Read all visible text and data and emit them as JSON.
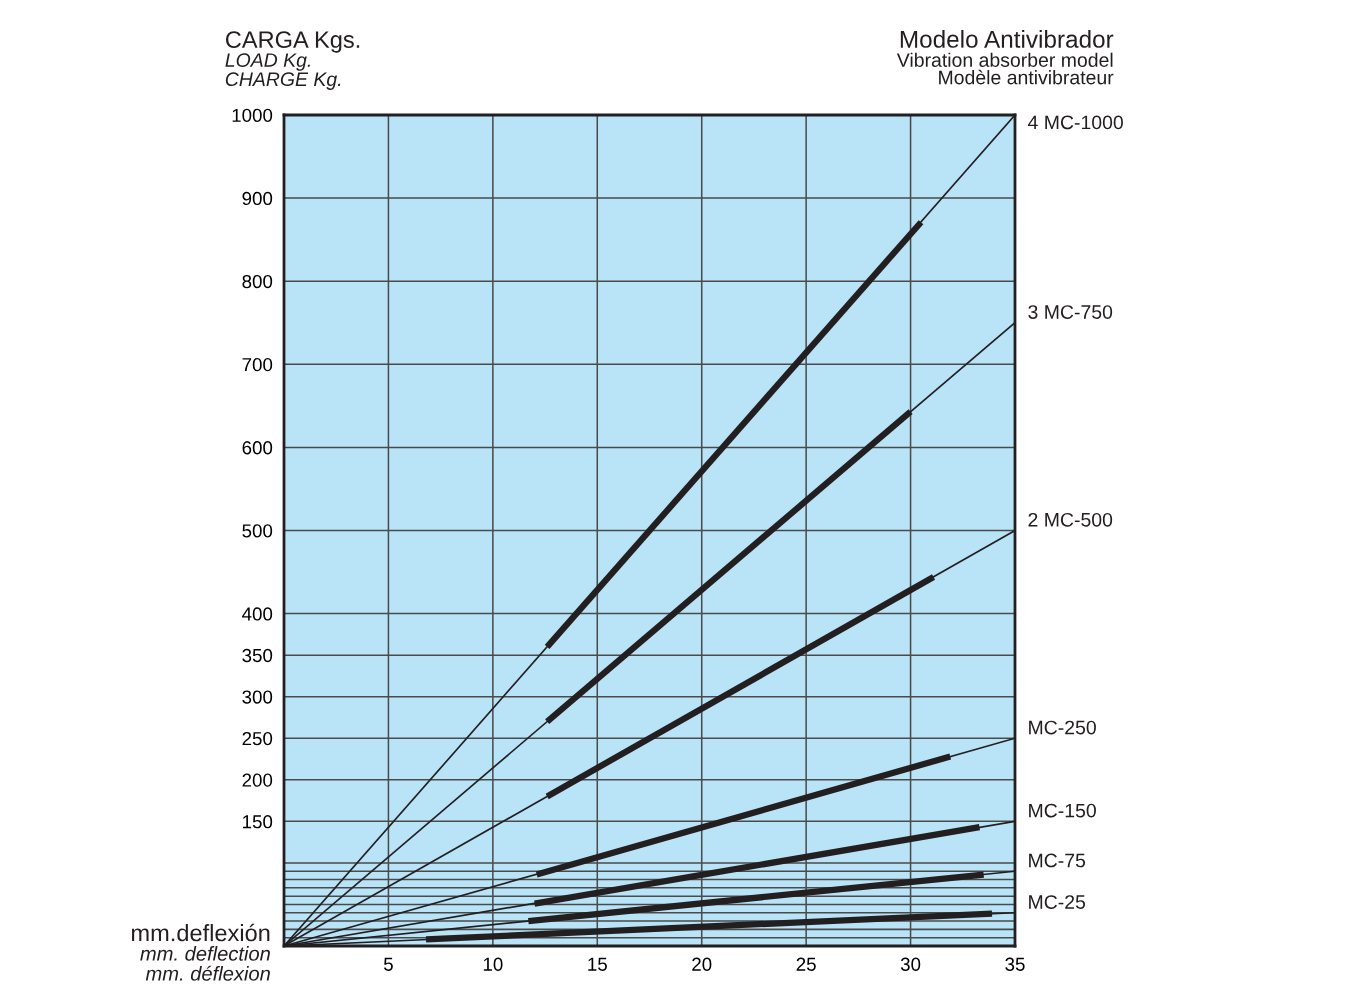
{
  "chart_data": {
    "type": "line",
    "title": "Modelo Antivibrador",
    "subtitle": "Vibration absorber model\nModèle antivibrateur",
    "xlabel": "mm.deflexión",
    "ylabel": "CARGA Kgs.",
    "annotations": [
      "LOAD Kg.",
      "CHARGE Kg.",
      "mm. deflection",
      "mm. déflexion"
    ],
    "xlim": [
      0,
      35
    ],
    "ylim": [
      0,
      1000
    ],
    "xticks": [
      5,
      10,
      15,
      20,
      25,
      30,
      35
    ],
    "yticks": [
      {
        "value": 10,
        "label": null
      },
      {
        "value": 20,
        "label": null
      },
      {
        "value": 30,
        "label": null
      },
      {
        "value": 40,
        "label": null
      },
      {
        "value": 50,
        "label": null
      },
      {
        "value": 60,
        "label": null
      },
      {
        "value": 70,
        "label": null
      },
      {
        "value": 80,
        "label": null
      },
      {
        "value": 90,
        "label": null
      },
      {
        "value": 100,
        "label": null
      },
      150,
      200,
      250,
      300,
      350,
      400,
      500,
      600,
      700,
      800,
      900,
      1000
    ],
    "grid": true,
    "marker": "none",
    "line_style": "solid",
    "series": [
      {
        "name": "4 MC-1000",
        "color": "#231f20",
        "x": [
          0,
          35
        ],
        "values": [
          0,
          1000
        ]
      },
      {
        "color": "#231f20",
        "x": [
          12.6,
          30.5
        ],
        "values": [
          360,
          871
        ]
      },
      {
        "name": "3 MC-750",
        "color": "#231f20",
        "x": [
          0,
          35
        ],
        "values": [
          0,
          750
        ]
      },
      {
        "color": "#231f20",
        "x": [
          12.6,
          30.0
        ],
        "values": [
          270,
          643
        ]
      },
      {
        "name": "2 MC-500",
        "color": "#231f20",
        "x": [
          0,
          35
        ],
        "values": [
          0,
          500
        ]
      },
      {
        "color": "#231f20",
        "x": [
          12.6,
          31.1
        ],
        "values": [
          180,
          444
        ]
      },
      {
        "name": "MC-250",
        "color": "#231f20",
        "x": [
          0,
          35
        ],
        "values": [
          0,
          250
        ]
      },
      {
        "color": "#231f20",
        "x": [
          12.1,
          31.9
        ],
        "values": [
          86,
          228
        ]
      },
      {
        "name": "MC-150",
        "color": "#231f20",
        "x": [
          0,
          35
        ],
        "values": [
          0,
          150
        ]
      },
      {
        "color": "#231f20",
        "x": [
          12.0,
          33.3
        ],
        "values": [
          51,
          143
        ]
      },
      {
        "name": "MC-75",
        "color": "#231f20",
        "x": [
          0,
          35
        ],
        "values": [
          0,
          90
        ]
      },
      {
        "color": "#231f20",
        "x": [
          11.7,
          33.5
        ],
        "values": [
          30,
          86
        ]
      },
      {
        "name": "MC-25",
        "color": "#231f20",
        "x": [
          0,
          35
        ],
        "values": [
          0,
          40
        ]
      },
      {
        "color": "#231f20",
        "x": [
          6.8,
          33.9
        ],
        "values": [
          8,
          39
        ]
      }
    ]
  }
}
